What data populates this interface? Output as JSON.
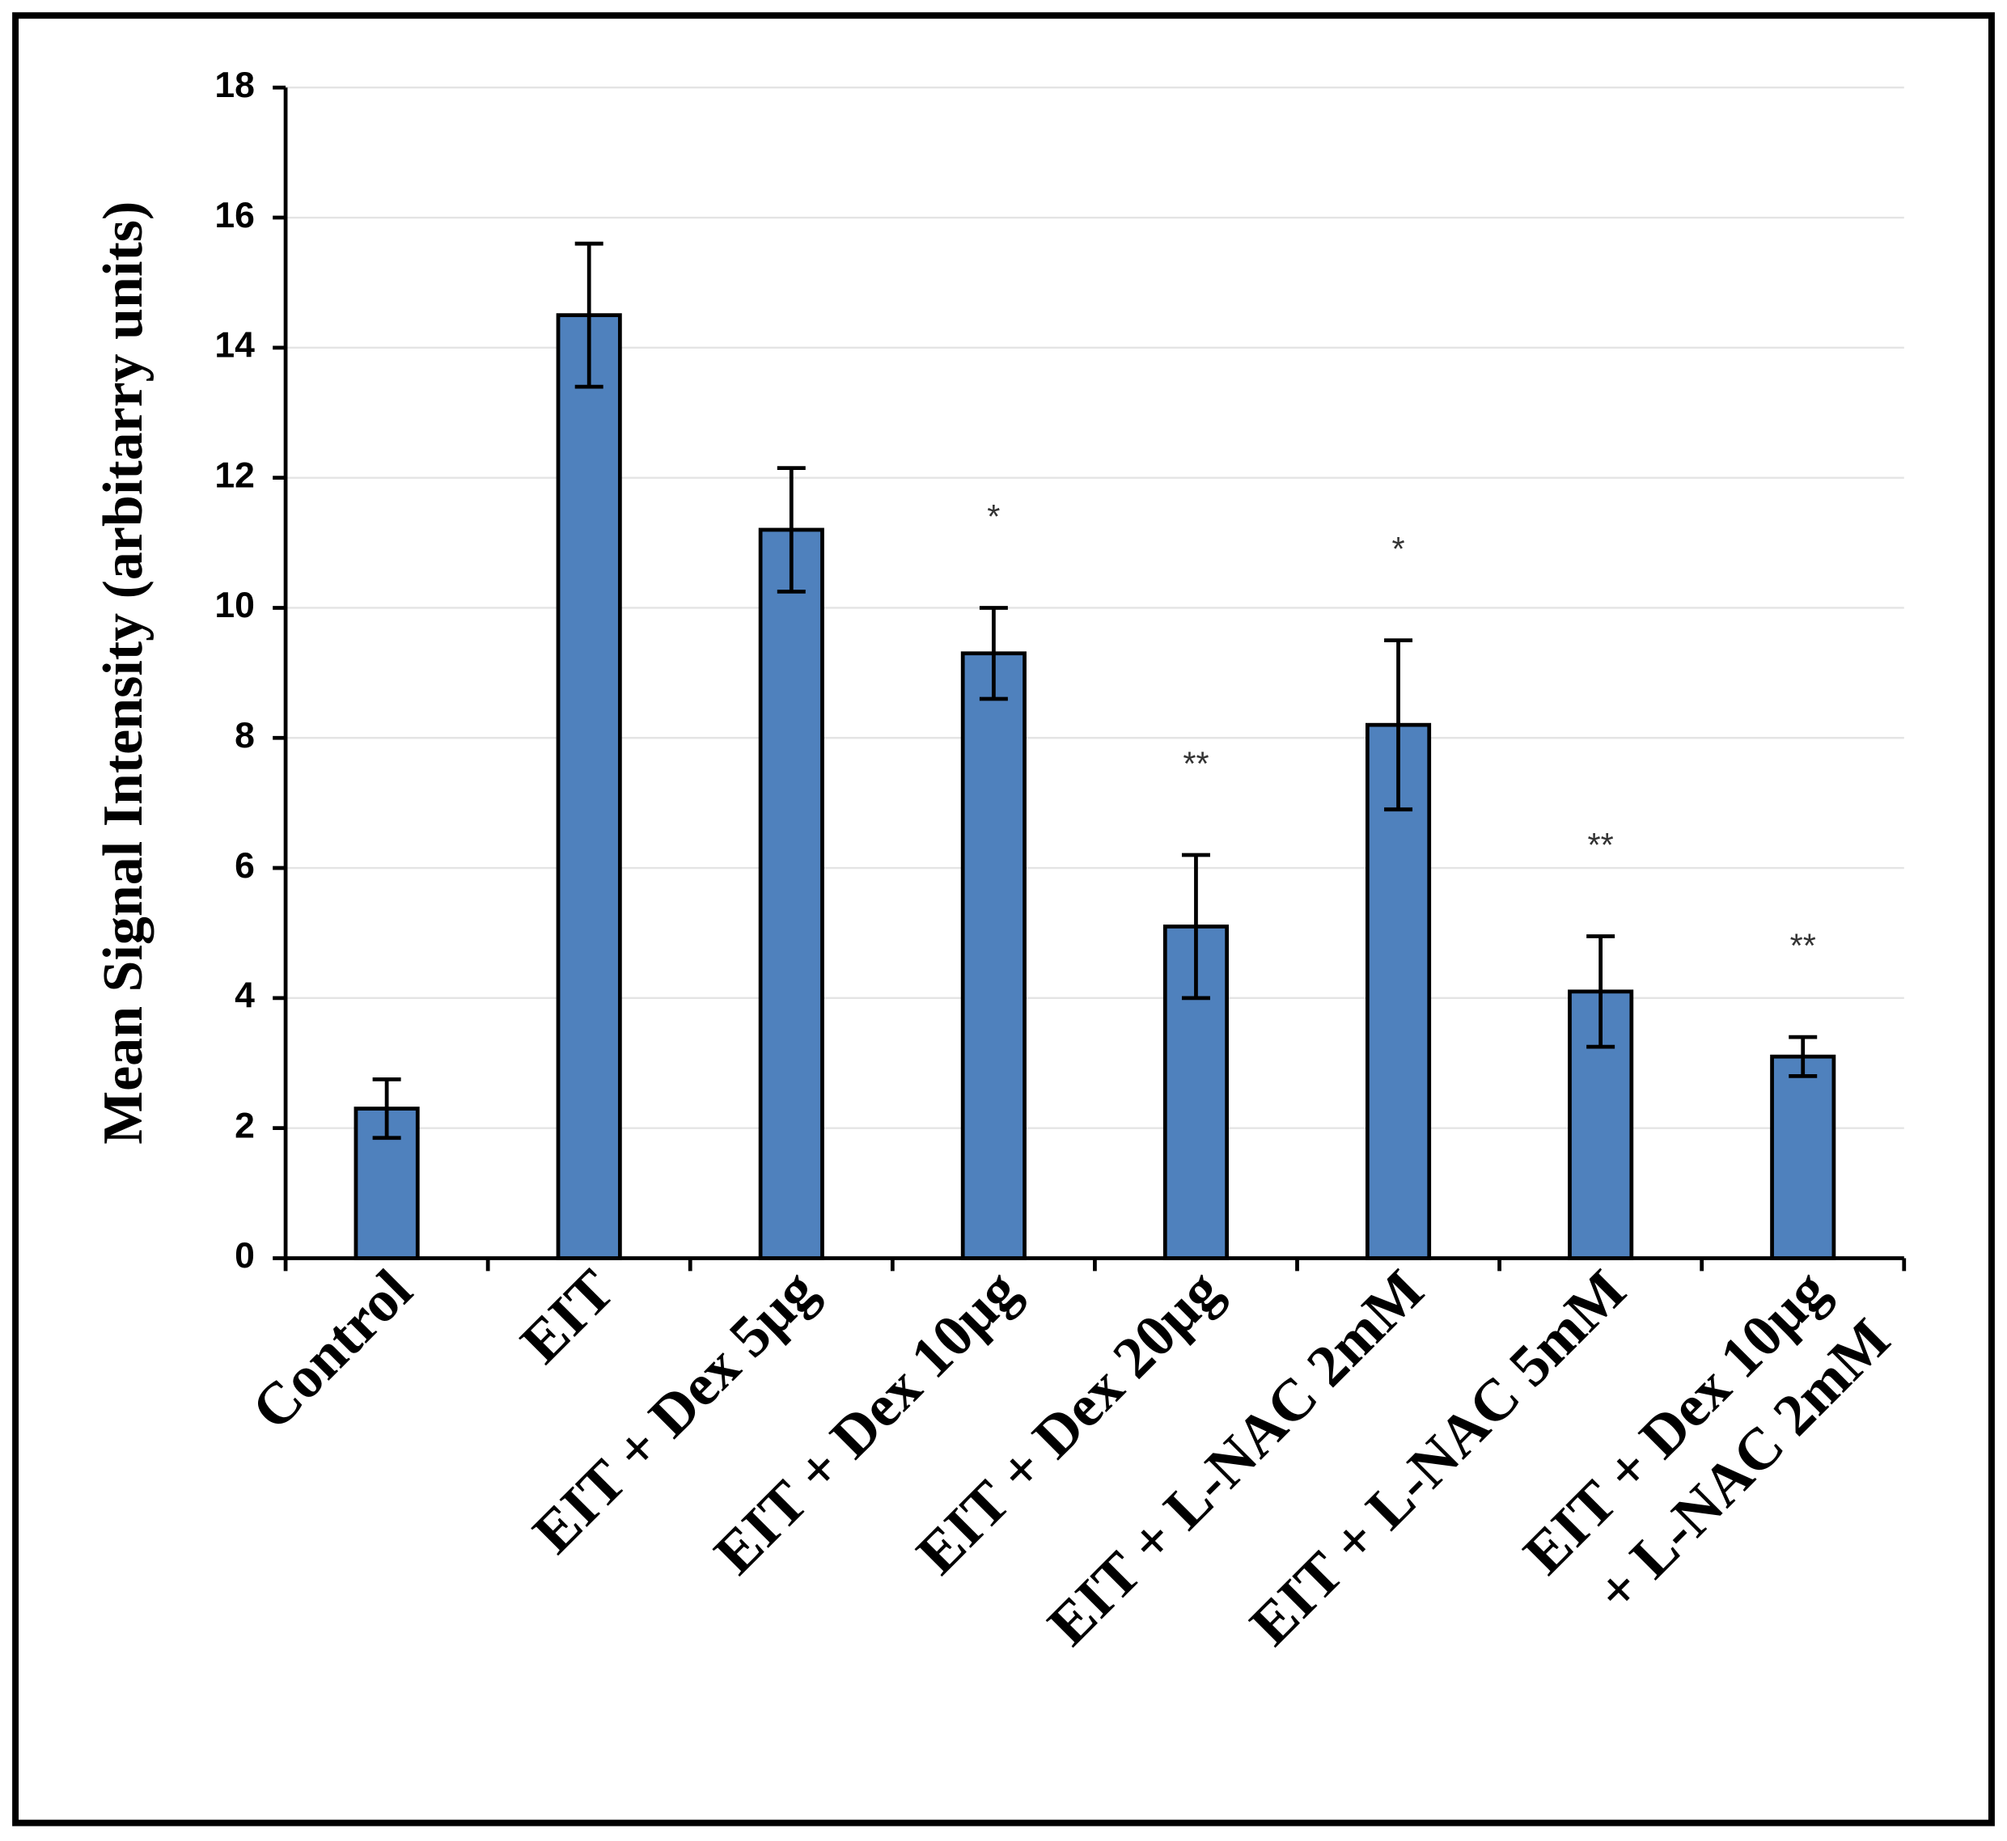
{
  "chart_data": {
    "type": "bar",
    "y_label": "Mean Signal Intensity (arbitarry units)",
    "categories": [
      [
        "Control"
      ],
      [
        "EIT"
      ],
      [
        "EIT + Dex 5µg"
      ],
      [
        "EIT + Dex 10µg"
      ],
      [
        "EIT + Dex 20µg"
      ],
      [
        "EIT + L-NAC 2mM"
      ],
      [
        "EIT + L-NAC 5mM"
      ],
      [
        "EIT + Dex 10µg",
        "+ L-NAC 2mM"
      ]
    ],
    "values": [
      2.3,
      14.5,
      11.2,
      9.3,
      5.1,
      8.2,
      4.1,
      3.1
    ],
    "errors": [
      0.45,
      1.1,
      0.95,
      0.7,
      1.1,
      1.3,
      0.85,
      0.3
    ],
    "annotations": [
      null,
      null,
      null,
      "*",
      "**",
      "*",
      "**",
      "**"
    ],
    "color": "#4f81bd",
    "ylim": [
      0,
      18
    ],
    "yticks": [
      0,
      2,
      4,
      6,
      8,
      10,
      12,
      14,
      16,
      18
    ],
    "grid": true
  }
}
